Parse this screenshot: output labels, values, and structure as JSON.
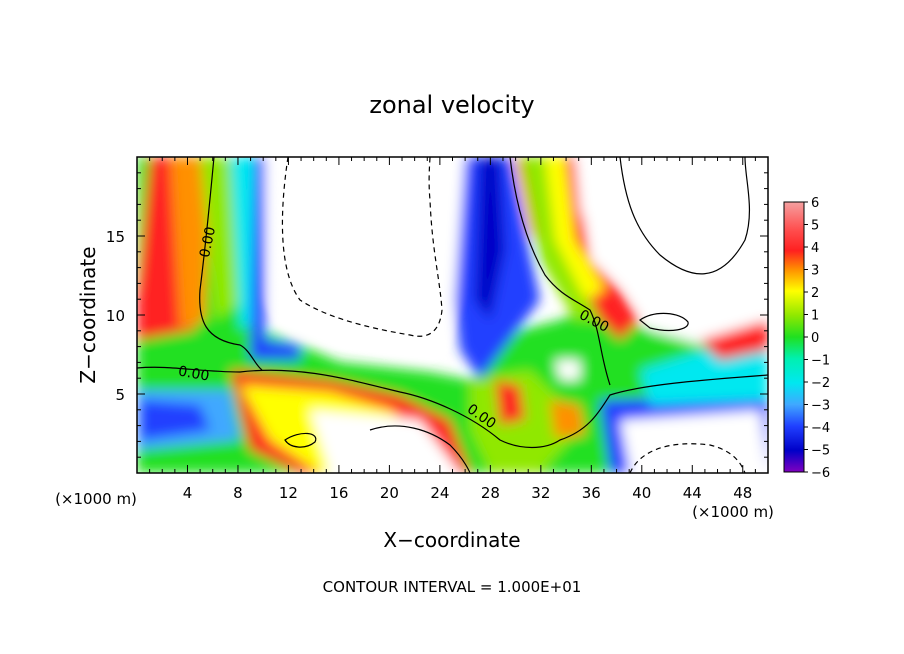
{
  "chart_data": {
    "type": "heatmap",
    "title": "zonal velocity",
    "xlabel": "X−coordinate",
    "ylabel": "Z−coordinate",
    "x_unit_left": "(×1000 m)",
    "x_unit_right": "(×1000 m)",
    "xlim": [
      0,
      50
    ],
    "ylim": [
      0,
      20
    ],
    "x_ticks": [
      "4",
      "8",
      "12",
      "16",
      "20",
      "24",
      "28",
      "32",
      "36",
      "40",
      "44",
      "48"
    ],
    "y_ticks": [
      "5",
      "10",
      "15"
    ],
    "colorbar_range": [
      -6,
      6
    ],
    "colorbar_ticks": [
      "6",
      "5",
      "4",
      "3",
      "2",
      "1",
      "0",
      "−1",
      "−2",
      "−3",
      "−4",
      "−5",
      "−6"
    ],
    "contour_labels": [
      "0.00",
      "0.00",
      "0.00",
      "0.00"
    ],
    "footer": "CONTOUR INTERVAL = 1.000E+01",
    "colors": {
      "out_of_range": "#ffffff",
      "plus6": "#f5a0a0",
      "plus4": "#ff2020",
      "plus3": "#ff9000",
      "plus2": "#ffff00",
      "plus1": "#90e800",
      "zero": "#20e020",
      "minus1": "#00f0b0",
      "minus2": "#00e8f0",
      "minus3": "#40a8ff",
      "minus4": "#2040ff",
      "minus5": "#0000c8",
      "minus6": "#8000c0"
    }
  }
}
